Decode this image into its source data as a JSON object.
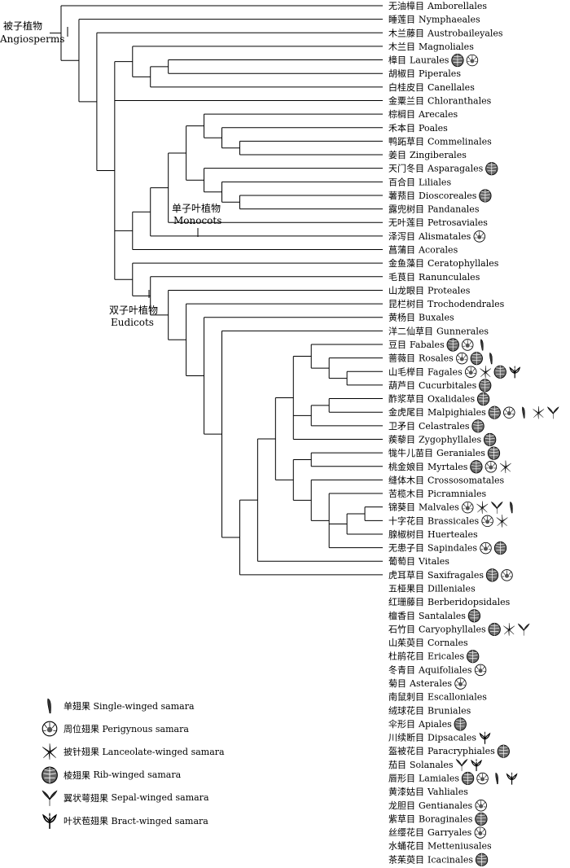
{
  "clades": {
    "angiosperms": {
      "zh": "被子植物",
      "en": "Angiosperms"
    },
    "monocots": {
      "zh": "单子叶植物",
      "en": "Monocots"
    },
    "eudicots": {
      "zh": "双子叶植物",
      "en": "Eudicots"
    }
  },
  "orders": [
    {
      "zh": "无油樟目",
      "en": "Amborellales",
      "icons": []
    },
    {
      "zh": "睡莲目",
      "en": "Nymphaeales",
      "icons": []
    },
    {
      "zh": "木兰藤目",
      "en": "Austrobaileyales",
      "icons": []
    },
    {
      "zh": "木兰目",
      "en": "Magnoliales",
      "icons": []
    },
    {
      "zh": "樟目",
      "en": "Laurales",
      "icons": [
        "rib",
        "peri"
      ]
    },
    {
      "zh": "胡椒目",
      "en": "Piperales",
      "icons": []
    },
    {
      "zh": "白桂皮目",
      "en": "Canellales",
      "icons": []
    },
    {
      "zh": "金粟兰目",
      "en": "Chloranthales",
      "icons": []
    },
    {
      "zh": "棕榈目",
      "en": "Arecales",
      "icons": []
    },
    {
      "zh": "禾本目",
      "en": "Poales",
      "icons": []
    },
    {
      "zh": "鸭跖草目",
      "en": "Commelinales",
      "icons": []
    },
    {
      "zh": "姜目",
      "en": "Zingiberales",
      "icons": []
    },
    {
      "zh": "天门冬目",
      "en": "Asparagales",
      "icons": [
        "rib"
      ]
    },
    {
      "zh": "百合目",
      "en": "Liliales",
      "icons": []
    },
    {
      "zh": "薯蓣目",
      "en": "Dioscoreales",
      "icons": [
        "rib"
      ]
    },
    {
      "zh": "露兜树目",
      "en": "Pandanales",
      "icons": []
    },
    {
      "zh": "无叶莲目",
      "en": "Petrosaviales",
      "icons": []
    },
    {
      "zh": "泽泻目",
      "en": "Alismatales",
      "icons": [
        "peri"
      ]
    },
    {
      "zh": "菖蒲目",
      "en": "Acorales",
      "icons": []
    },
    {
      "zh": "金鱼藻目",
      "en": "Ceratophyllales",
      "icons": []
    },
    {
      "zh": "毛茛目",
      "en": "Ranunculales",
      "icons": []
    },
    {
      "zh": "山龙眼目",
      "en": "Proteales",
      "icons": []
    },
    {
      "zh": "昆栏树目",
      "en": "Trochodendrales",
      "icons": []
    },
    {
      "zh": "黄杨目",
      "en": "Buxales",
      "icons": []
    },
    {
      "zh": "洋二仙草目",
      "en": "Gunnerales",
      "icons": []
    },
    {
      "zh": "豆目",
      "en": "Fabales",
      "icons": [
        "rib",
        "peri",
        "single"
      ]
    },
    {
      "zh": "蔷薇目",
      "en": "Rosales",
      "icons": [
        "peri",
        "rib",
        "single"
      ]
    },
    {
      "zh": "山毛榉目",
      "en": "Fagales",
      "icons": [
        "peri",
        "lance",
        "rib",
        "bract"
      ]
    },
    {
      "zh": "葫芦目",
      "en": "Cucurbitales",
      "icons": [
        "rib"
      ]
    },
    {
      "zh": "酢浆草目",
      "en": "Oxalidales",
      "icons": [
        "rib"
      ]
    },
    {
      "zh": "金虎尾目",
      "en": "Malpighiales",
      "icons": [
        "rib",
        "peri",
        "single",
        "lance",
        "sepal"
      ]
    },
    {
      "zh": "卫矛目",
      "en": "Celastrales",
      "icons": [
        "rib"
      ]
    },
    {
      "zh": "蒺藜目",
      "en": "Zygophyllales",
      "icons": [
        "rib"
      ]
    },
    {
      "zh": "牻牛儿苗目",
      "en": "Geraniales",
      "icons": [
        "rib"
      ]
    },
    {
      "zh": "桃金娘目",
      "en": "Myrtales",
      "icons": [
        "rib",
        "peri",
        "lance"
      ]
    },
    {
      "zh": "缝体木目",
      "en": "Crossosomatales",
      "icons": []
    },
    {
      "zh": "苦榄木目",
      "en": "Picramniales",
      "icons": []
    },
    {
      "zh": "锦葵目",
      "en": "Malvales",
      "icons": [
        "peri",
        "lance",
        "sepal",
        "single"
      ]
    },
    {
      "zh": "十字花目",
      "en": "Brassicales",
      "icons": [
        "peri",
        "lance"
      ]
    },
    {
      "zh": "腺椒树目",
      "en": "Huerteales",
      "icons": []
    },
    {
      "zh": "无患子目",
      "en": "Sapindales",
      "icons": [
        "peri",
        "rib"
      ]
    },
    {
      "zh": "葡萄目",
      "en": "Vitales",
      "icons": []
    },
    {
      "zh": "虎耳草目",
      "en": "Saxifragales",
      "icons": [
        "rib",
        "peri"
      ]
    },
    {
      "zh": "五桠果目",
      "en": "Dilleniales",
      "icons": []
    },
    {
      "zh": "红珊藤目",
      "en": "Berberidopsidales",
      "icons": []
    },
    {
      "zh": "檀香目",
      "en": "Santalales",
      "icons": [
        "rib"
      ]
    },
    {
      "zh": "石竹目",
      "en": "Caryophyllales",
      "icons": [
        "rib",
        "lance",
        "sepal"
      ]
    },
    {
      "zh": "山茱萸目",
      "en": "Cornales",
      "icons": []
    },
    {
      "zh": "杜鹃花目",
      "en": "Ericales",
      "icons": [
        "rib"
      ]
    },
    {
      "zh": "冬青目",
      "en": "Aquifoliales",
      "icons": [
        "peri"
      ]
    },
    {
      "zh": "菊目",
      "en": "Asterales",
      "icons": [
        "peri"
      ]
    },
    {
      "zh": "南鼠刺目",
      "en": "Escalloniales",
      "icons": []
    },
    {
      "zh": "绒球花目",
      "en": "Bruniales",
      "icons": []
    },
    {
      "zh": "伞形目",
      "en": "Apiales",
      "icons": [
        "rib"
      ]
    },
    {
      "zh": "川续断目",
      "en": "Dipsacales",
      "icons": [
        "bract"
      ]
    },
    {
      "zh": "盔被花目",
      "en": "Paracryphiales",
      "icons": [
        "rib"
      ]
    },
    {
      "zh": "茄目",
      "en": "Solanales",
      "icons": [
        "sepal",
        "bract"
      ]
    },
    {
      "zh": "唇形目",
      "en": "Lamiales",
      "icons": [
        "rib",
        "peri",
        "single",
        "bract"
      ]
    },
    {
      "zh": "黄漆姑目",
      "en": "Vahliales",
      "icons": []
    },
    {
      "zh": "龙胆目",
      "en": "Gentianales",
      "icons": [
        "peri"
      ]
    },
    {
      "zh": "紫草目",
      "en": "Boraginales",
      "icons": [
        "rib"
      ]
    },
    {
      "zh": "丝缨花目",
      "en": "Garryales",
      "icons": [
        "peri"
      ]
    },
    {
      "zh": "水蛹花目",
      "en": "Metteniusales",
      "icons": []
    },
    {
      "zh": "茶茱萸目",
      "en": "Icacinales",
      "icons": [
        "rib"
      ]
    }
  ],
  "legend": [
    {
      "icon": "single",
      "zh": "单翅果",
      "en": "Single-winged samara"
    },
    {
      "icon": "peri",
      "zh": "周位翅果",
      "en": "Perigynous samara"
    },
    {
      "icon": "lance",
      "zh": "披针翅果",
      "en": "Lanceolate-winged samara"
    },
    {
      "icon": "rib",
      "zh": "棱翅果",
      "en": "Rib-winged samara"
    },
    {
      "icon": "sepal",
      "zh": "翼状萼翅果",
      "en": "Sepal-winged samara"
    },
    {
      "icon": "bract",
      "zh": "叶状苞翅果",
      "en": "Bract-winged samara"
    }
  ],
  "tree": {
    "c": [
      {
        "l": 0
      },
      {
        "c": [
          {
            "l": 1
          },
          {
            "c": [
              {
                "l": 2
              },
              {
                "c": [
                  {
                    "c": [
                      {
                        "l": 3
                      },
                      {
                        "c": [
                          {
                            "c": [
                              {
                                "l": 4
                              },
                              {
                                "l": 5
                              }
                            ]
                          },
                          {
                            "l": 6
                          }
                        ]
                      }
                    ]
                  },
                  {
                    "l": 7
                  },
                  {
                    "c": [
                      {
                        "c": [
                          {
                            "c": [
                              {
                                "c": [
                                  {
                                    "c": [
                                      {
                                        "l": 8
                                      },
                                      {
                                        "c": [
                                          {
                                            "l": 9
                                          },
                                          {
                                            "c": [
                                              {
                                                "l": 10
                                              },
                                              {
                                                "l": 11
                                              }
                                            ]
                                          }
                                        ]
                                      }
                                    ]
                                  },
                                  {
                                    "c": [
                                      {
                                        "l": 12
                                      },
                                      {
                                        "c": [
                                          {
                                            "l": 13
                                          },
                                          {
                                            "c": [
                                              {
                                                "l": 14
                                              },
                                              {
                                                "l": 15
                                              }
                                            ]
                                          }
                                        ]
                                      }
                                    ]
                                  }
                                ]
                              },
                              {
                                "l": 16
                              }
                            ]
                          },
                          {
                            "l": 17
                          }
                        ]
                      },
                      {
                        "l": 18
                      }
                    ]
                  },
                  {
                    "c": [
                      {
                        "l": 19
                      },
                      {
                        "c": [
                          {
                            "l": 20
                          },
                          {
                            "c": [
                              {
                                "l": 21
                              },
                              {
                                "c": [
                                  {
                                    "l": 22
                                  },
                                  {
                                    "c": [
                                      {
                                        "l": 23
                                      },
                                      {
                                        "c": [
                                          {
                                            "l": 24
                                          },
                                          {
                                            "c": [
                                              {
                                                "c": [
                                                  {
                                                    "c": [
                                                      {
                                                        "c": [
                                                          {
                                                            "c": [
                                                              {
                                                                "l": 25
                                                              },
                                                              {
                                                                "c": [
                                                                  {
                                                                    "l": 26
                                                                  },
                                                                  {
                                                                    "c": [
                                                                      {
                                                                        "l": 27
                                                                      },
                                                                      {
                                                                        "l": 28
                                                                      }
                                                                    ]
                                                                  }
                                                                ]
                                                              }
                                                            ]
                                                          },
                                                          {
                                                            "c": [
                                                              {
                                                                "c": [
                                                                  {
                                                                    "l": 29
                                                                  },
                                                                  {
                                                                    "l": 30
                                                                  }
                                                                ]
                                                              },
                                                              {
                                                                "l": 31
                                                              }
                                                            ]
                                                          },
                                                          {
                                                            "l": 32
                                                          }
                                                        ]
                                                      },
                                                      {
                                                        "c": [
                                                          {
                                                            "c": [
                                                              {
                                                                "l": 33
                                                              },
                                                              {
                                                                "l": 34
                                                              }
                                                            ]
                                                          },
                                                          {
                                                            "c": [
                                                              {
                                                                "l": 35
                                                              },
                                                              {
                                                                "c": [
                                                                  {
                                                                    "l": 36
                                                                  },
                                                                  {
                                                                    "c": [
                                                                      {
                                                                        "c": [
                                                                          {
                                                                            "l": 37
                                                                          },
                                                                          {
                                                                            "l": 38
                                                                          }
                                                                        ]
                                                                      },
                                                                      {
                                                                        "l": 39
                                                                      }
                                                                    ]
                                                                  },
                                                                  {
                                                                    "l": 40
                                                                  }
                                                                ]
                                                              }
                                                            ]
                                                          }
                                                        ]
                                                      }
                                                    ]
                                                  },
                                                  {
                                                    "l": 41
                                                  }
                                                ]
                                              },
                                              {
                                                "l": 42
                                              }
                                            ]
                                          }
                                        ]
                                      }
                                    ]
                                  }
                                ]
                              }
                            ]
                          }
                        ]
                      }
                    ]
                  }
                ]
              }
            ]
          }
        ]
      }
    ]
  }
}
